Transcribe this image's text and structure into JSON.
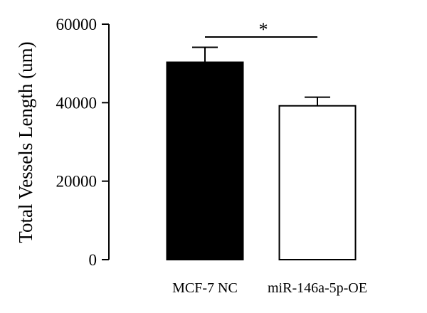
{
  "chart_data": {
    "type": "bar",
    "categories": [
      "MCF-7 NC",
      "miR-146a-5p-OE"
    ],
    "values": [
      50300,
      39200
    ],
    "error": [
      3800,
      2200
    ],
    "bar_fill": [
      "#000000",
      "#ffffff"
    ],
    "bar_stroke": "#000000",
    "ylabel": "Total Vessels Length (um)",
    "ylim": [
      0,
      60000
    ],
    "yticks": [
      0,
      20000,
      40000,
      60000
    ],
    "yticklabels": [
      "0",
      "20000",
      "40000",
      "60000"
    ],
    "grid": false,
    "legend": "none",
    "significance": {
      "between": [
        0,
        1
      ],
      "label": "*"
    }
  }
}
